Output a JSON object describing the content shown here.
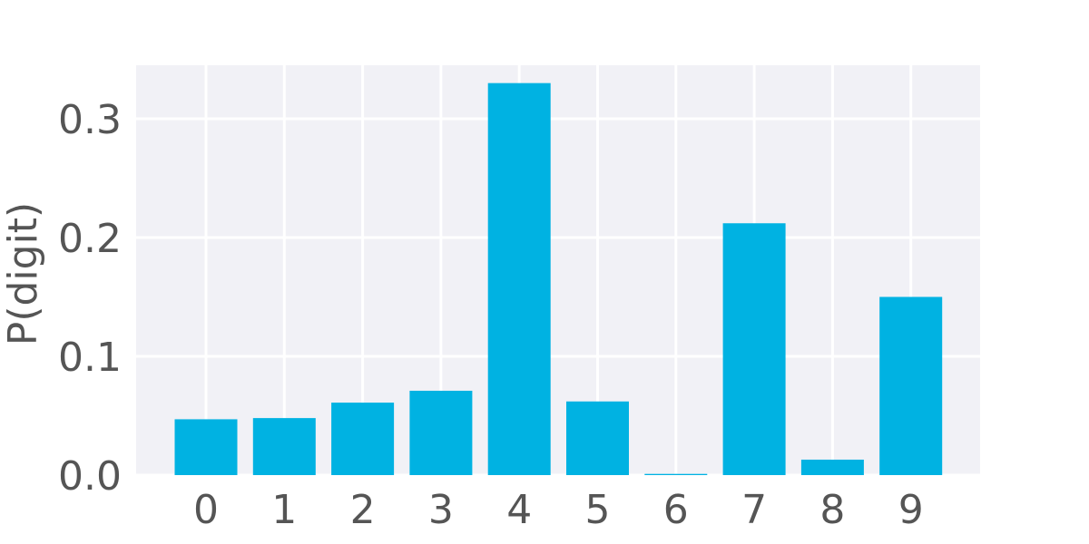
{
  "chart_data": {
    "type": "bar",
    "title": "",
    "xlabel": "",
    "ylabel": "P(digit)",
    "categories": [
      "0",
      "1",
      "2",
      "3",
      "4",
      "5",
      "6",
      "7",
      "8",
      "9"
    ],
    "values": [
      0.047,
      0.048,
      0.061,
      0.071,
      0.33,
      0.062,
      0.001,
      0.212,
      0.013,
      0.15
    ],
    "ylim": [
      0,
      0.345
    ],
    "yticks": [
      0.0,
      0.1,
      0.2,
      0.3
    ],
    "ytick_labels": [
      "0.0",
      "0.1",
      "0.2",
      "0.3"
    ],
    "grid": true,
    "bar_color": "#00b2e2",
    "plot_background": "#f1f1f6",
    "grid_color": "#ffffff"
  }
}
